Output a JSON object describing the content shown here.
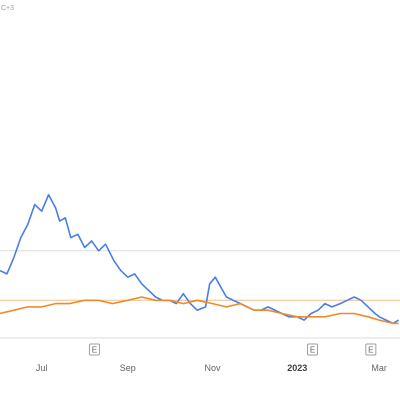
{
  "corner_label": "C+3",
  "chart_data": {
    "type": "line",
    "x_axis": {
      "tick_labels": [
        {
          "label": "Jul",
          "date": "2022-07-01",
          "bold": false
        },
        {
          "label": "Sep",
          "date": "2022-09-01",
          "bold": false
        },
        {
          "label": "Nov",
          "date": "2022-11-01",
          "bold": false
        },
        {
          "label": "2023",
          "date": "2023-01-01",
          "bold": true
        },
        {
          "label": "Mar",
          "date": "2023-03-01",
          "bold": false
        }
      ]
    },
    "ylim": [
      0,
      100
    ],
    "reference_line": {
      "y": 24,
      "color": "#dadce0"
    },
    "baseline": {
      "y": 9,
      "color": "#f5c08c"
    },
    "event_markers": [
      {
        "label": "E",
        "date": "2022-08-08"
      },
      {
        "label": "E",
        "date": "2023-01-12"
      },
      {
        "label": "E",
        "date": "2023-02-23"
      }
    ],
    "series": [
      {
        "color": "#4a7ee6",
        "points": [
          [
            "2022-06-01",
            18
          ],
          [
            "2022-06-06",
            17
          ],
          [
            "2022-06-11",
            22
          ],
          [
            "2022-06-16",
            28
          ],
          [
            "2022-06-21",
            32
          ],
          [
            "2022-06-26",
            38
          ],
          [
            "2022-07-01",
            36
          ],
          [
            "2022-07-06",
            41
          ],
          [
            "2022-07-11",
            37
          ],
          [
            "2022-07-14",
            33
          ],
          [
            "2022-07-18",
            34
          ],
          [
            "2022-07-22",
            28
          ],
          [
            "2022-07-27",
            29
          ],
          [
            "2022-08-01",
            25
          ],
          [
            "2022-08-06",
            27
          ],
          [
            "2022-08-11",
            24
          ],
          [
            "2022-08-16",
            26
          ],
          [
            "2022-08-22",
            21
          ],
          [
            "2022-08-27",
            18
          ],
          [
            "2022-09-01",
            16
          ],
          [
            "2022-09-06",
            17
          ],
          [
            "2022-09-11",
            14
          ],
          [
            "2022-09-16",
            12
          ],
          [
            "2022-09-21",
            10
          ],
          [
            "2022-09-26",
            9
          ],
          [
            "2022-10-01",
            9
          ],
          [
            "2022-10-06",
            8
          ],
          [
            "2022-10-11",
            11
          ],
          [
            "2022-10-16",
            8
          ],
          [
            "2022-10-21",
            6
          ],
          [
            "2022-10-27",
            7
          ],
          [
            "2022-10-30",
            14
          ],
          [
            "2022-11-03",
            16
          ],
          [
            "2022-11-07",
            13
          ],
          [
            "2022-11-11",
            10
          ],
          [
            "2022-11-16",
            9
          ],
          [
            "2022-11-21",
            8
          ],
          [
            "2022-11-26",
            7
          ],
          [
            "2022-12-01",
            6
          ],
          [
            "2022-12-06",
            6
          ],
          [
            "2022-12-11",
            7
          ],
          [
            "2022-12-16",
            6
          ],
          [
            "2022-12-21",
            5
          ],
          [
            "2022-12-26",
            4
          ],
          [
            "2023-01-01",
            4
          ],
          [
            "2023-01-06",
            3
          ],
          [
            "2023-01-11",
            5
          ],
          [
            "2023-01-16",
            6
          ],
          [
            "2023-01-21",
            8
          ],
          [
            "2023-01-26",
            7
          ],
          [
            "2023-02-01",
            8
          ],
          [
            "2023-02-06",
            9
          ],
          [
            "2023-02-11",
            10
          ],
          [
            "2023-02-16",
            9
          ],
          [
            "2023-02-21",
            7
          ],
          [
            "2023-02-26",
            5
          ],
          [
            "2023-03-01",
            4
          ],
          [
            "2023-03-06",
            3
          ],
          [
            "2023-03-11",
            2
          ],
          [
            "2023-03-15",
            3
          ]
        ]
      },
      {
        "color": "#f0892b",
        "points": [
          [
            "2022-06-01",
            5
          ],
          [
            "2022-06-11",
            6
          ],
          [
            "2022-06-21",
            7
          ],
          [
            "2022-07-01",
            7
          ],
          [
            "2022-07-11",
            8
          ],
          [
            "2022-07-21",
            8
          ],
          [
            "2022-08-01",
            9
          ],
          [
            "2022-08-11",
            9
          ],
          [
            "2022-08-21",
            8
          ],
          [
            "2022-09-01",
            9
          ],
          [
            "2022-09-11",
            10
          ],
          [
            "2022-09-21",
            9
          ],
          [
            "2022-10-01",
            9
          ],
          [
            "2022-10-11",
            8
          ],
          [
            "2022-10-21",
            9
          ],
          [
            "2022-11-01",
            8
          ],
          [
            "2022-11-11",
            7
          ],
          [
            "2022-11-21",
            8
          ],
          [
            "2022-12-01",
            6
          ],
          [
            "2022-12-11",
            6
          ],
          [
            "2022-12-21",
            5
          ],
          [
            "2023-01-01",
            4
          ],
          [
            "2023-01-11",
            4
          ],
          [
            "2023-01-21",
            4
          ],
          [
            "2023-02-01",
            5
          ],
          [
            "2023-02-11",
            5
          ],
          [
            "2023-02-21",
            4
          ],
          [
            "2023-03-01",
            3
          ],
          [
            "2023-03-11",
            2
          ],
          [
            "2023-03-15",
            2
          ]
        ]
      }
    ]
  }
}
